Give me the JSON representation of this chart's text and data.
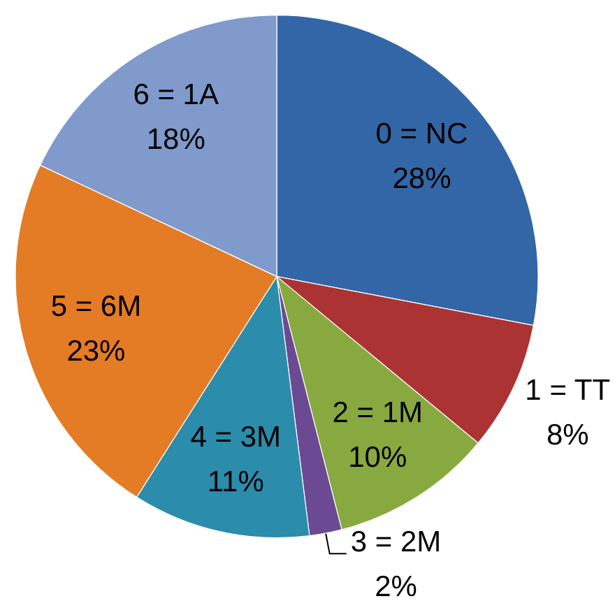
{
  "chart_data": {
    "type": "pie",
    "categories": [
      "0 = NC",
      "1 = TT",
      "2 = 1M",
      "3 = 2M",
      "4 = 3M",
      "5 = 6M",
      "6 = 1A"
    ],
    "values": [
      28,
      8,
      10,
      2,
      11,
      23,
      18
    ],
    "value_labels": [
      "28%",
      "8%",
      "10%",
      "2%",
      "11%",
      "23%",
      "18%"
    ],
    "colors": [
      "#3366a6",
      "#ac3333",
      "#88a93f",
      "#6b4a93",
      "#2b8cab",
      "#e47b25",
      "#7f9acb"
    ]
  }
}
